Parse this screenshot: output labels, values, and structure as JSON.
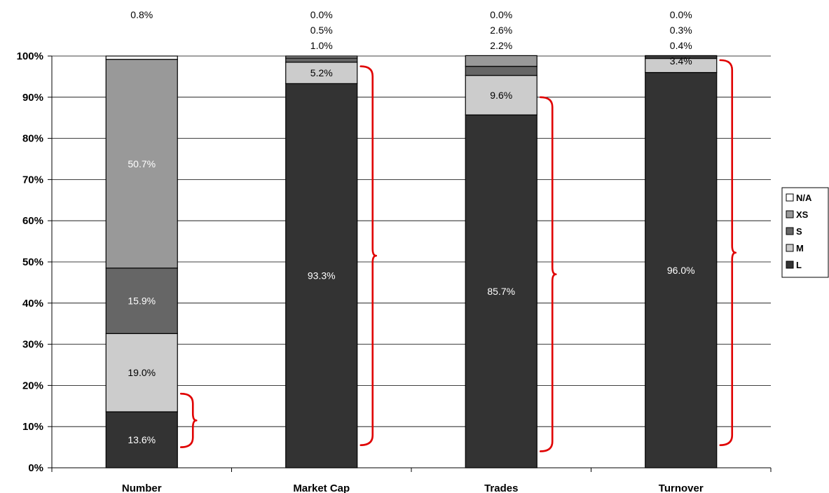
{
  "chart_data": {
    "type": "bar",
    "stacked": true,
    "title": "",
    "xlabel": "",
    "ylabel": "",
    "ylim": [
      0,
      100
    ],
    "y_ticks": [
      "0%",
      "10%",
      "20%",
      "30%",
      "40%",
      "50%",
      "60%",
      "70%",
      "80%",
      "90%",
      "100%"
    ],
    "categories": [
      "Number",
      "Market Cap",
      "Trades",
      "Turnover"
    ],
    "series": [
      {
        "name": "L",
        "color": "#333333",
        "values": [
          13.6,
          93.3,
          85.7,
          96.0
        ],
        "labels": [
          "13.6%",
          "93.3%",
          "85.7%",
          "96.0%"
        ]
      },
      {
        "name": "M",
        "color": "#cccccc",
        "values": [
          19.0,
          5.2,
          9.6,
          3.4
        ],
        "labels": [
          "19.0%",
          "5.2%",
          "9.6%",
          "3.4%"
        ]
      },
      {
        "name": "S",
        "color": "#666666",
        "values": [
          15.9,
          1.0,
          2.2,
          0.4
        ],
        "labels": [
          "15.9%",
          "1.0%",
          "2.2%",
          "0.4%"
        ]
      },
      {
        "name": "XS",
        "color": "#999999",
        "values": [
          50.7,
          0.5,
          2.6,
          0.3
        ],
        "labels": [
          "50.7%",
          "0.5%",
          "2.6%",
          "0.3%"
        ]
      },
      {
        "name": "N/A",
        "color": "#ffffff",
        "values": [
          0.8,
          0.0,
          0.0,
          0.0
        ],
        "labels": [
          "0.8%",
          "0.0%",
          "0.0%",
          "0.0%"
        ]
      }
    ],
    "legend_order": [
      "N/A",
      "XS",
      "S",
      "M",
      "L"
    ],
    "legend_position": "right",
    "grid": true,
    "brackets": [
      {
        "category": "Number",
        "from": 5,
        "to": 18
      },
      {
        "category": "Market Cap",
        "from": 5.5,
        "to": 97.5
      },
      {
        "category": "Trades",
        "from": 4,
        "to": 90
      },
      {
        "category": "Turnover",
        "from": 5.5,
        "to": 99
      }
    ],
    "bracket_color": "#e00000"
  }
}
